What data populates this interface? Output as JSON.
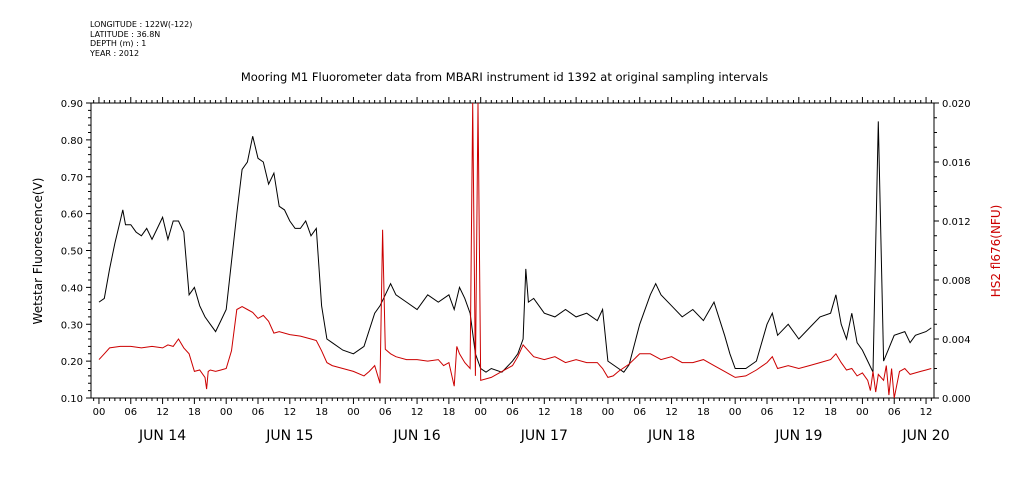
{
  "meta": {
    "longitude": "LONGITUDE : 122W(-122)",
    "latitude": "LATITUDE : 36.8N",
    "depth": "DEPTH (m) : 1",
    "year": "YEAR : 2012"
  },
  "chart_data": {
    "type": "line",
    "title": "Mooring M1 Fluorometer data from MBARI instrument id 1392 at original sampling intervals",
    "ylabel_left": "Wetstar Fluorescence(V)",
    "ylabel_right": "HS2 fl676(NFU)",
    "ylim_left": [
      0.1,
      0.9
    ],
    "ylim_right": [
      0.0,
      0.02
    ],
    "yticks_left": [
      "0.10",
      "0.20",
      "0.30",
      "0.40",
      "0.50",
      "0.60",
      "0.70",
      "0.80",
      "0.90"
    ],
    "yticks_right": [
      "0.000",
      "0.004",
      "0.008",
      "0.012",
      "0.016",
      "0.020"
    ],
    "xlim_hours": [
      -1.5,
      157.5
    ],
    "x_hour_labels": [
      "00",
      "06",
      "12",
      "18",
      "00",
      "06",
      "12",
      "18",
      "00",
      "06",
      "12",
      "18",
      "00",
      "06",
      "12",
      "18",
      "00",
      "06",
      "12",
      "18",
      "00",
      "06",
      "12",
      "18",
      "00",
      "06",
      "12"
    ],
    "day_labels": [
      "JUN 14",
      "JUN 15",
      "JUN 16",
      "JUN 17",
      "JUN 18",
      "JUN 19",
      "JUN 20"
    ],
    "grid": false,
    "colors": {
      "left_series": "#000000",
      "right_series": "#cc0000",
      "right_axis_label": "#cc0000"
    },
    "series": [
      {
        "name": "Wetstar Fluorescence(V)",
        "axis": "left",
        "points": [
          [
            0,
            0.36
          ],
          [
            1,
            0.37
          ],
          [
            2,
            0.45
          ],
          [
            3,
            0.52
          ],
          [
            4,
            0.58
          ],
          [
            4.5,
            0.61
          ],
          [
            5,
            0.57
          ],
          [
            6,
            0.57
          ],
          [
            7,
            0.55
          ],
          [
            8,
            0.54
          ],
          [
            9,
            0.56
          ],
          [
            10,
            0.53
          ],
          [
            11,
            0.56
          ],
          [
            12,
            0.59
          ],
          [
            13,
            0.53
          ],
          [
            14,
            0.58
          ],
          [
            15,
            0.58
          ],
          [
            16,
            0.55
          ],
          [
            17,
            0.38
          ],
          [
            18,
            0.4
          ],
          [
            19,
            0.35
          ],
          [
            20,
            0.32
          ],
          [
            21,
            0.3
          ],
          [
            22,
            0.28
          ],
          [
            23,
            0.31
          ],
          [
            24,
            0.34
          ],
          [
            25,
            0.47
          ],
          [
            26,
            0.6
          ],
          [
            27,
            0.72
          ],
          [
            28,
            0.74
          ],
          [
            29,
            0.81
          ],
          [
            30,
            0.75
          ],
          [
            31,
            0.74
          ],
          [
            32,
            0.68
          ],
          [
            33,
            0.71
          ],
          [
            34,
            0.62
          ],
          [
            35,
            0.61
          ],
          [
            36,
            0.58
          ],
          [
            37,
            0.56
          ],
          [
            38,
            0.56
          ],
          [
            39,
            0.58
          ],
          [
            40,
            0.54
          ],
          [
            41,
            0.56
          ],
          [
            42,
            0.35
          ],
          [
            43,
            0.26
          ],
          [
            44,
            0.25
          ],
          [
            46,
            0.23
          ],
          [
            48,
            0.22
          ],
          [
            50,
            0.24
          ],
          [
            52,
            0.33
          ],
          [
            53,
            0.35
          ],
          [
            54,
            0.38
          ],
          [
            55,
            0.41
          ],
          [
            56,
            0.38
          ],
          [
            58,
            0.36
          ],
          [
            60,
            0.34
          ],
          [
            62,
            0.38
          ],
          [
            64,
            0.36
          ],
          [
            66,
            0.38
          ],
          [
            67,
            0.34
          ],
          [
            68,
            0.4
          ],
          [
            69,
            0.37
          ],
          [
            70,
            0.33
          ],
          [
            71,
            0.22
          ],
          [
            72,
            0.18
          ],
          [
            73,
            0.17
          ],
          [
            74,
            0.18
          ],
          [
            76,
            0.17
          ],
          [
            78,
            0.2
          ],
          [
            79,
            0.22
          ],
          [
            80,
            0.26
          ],
          [
            80.5,
            0.45
          ],
          [
            81,
            0.36
          ],
          [
            82,
            0.37
          ],
          [
            84,
            0.33
          ],
          [
            86,
            0.32
          ],
          [
            88,
            0.34
          ],
          [
            90,
            0.32
          ],
          [
            92,
            0.33
          ],
          [
            94,
            0.31
          ],
          [
            95,
            0.34
          ],
          [
            96,
            0.2
          ],
          [
            98,
            0.18
          ],
          [
            99,
            0.17
          ],
          [
            100,
            0.19
          ],
          [
            102,
            0.3
          ],
          [
            104,
            0.38
          ],
          [
            105,
            0.41
          ],
          [
            106,
            0.38
          ],
          [
            108,
            0.35
          ],
          [
            110,
            0.32
          ],
          [
            112,
            0.34
          ],
          [
            114,
            0.31
          ],
          [
            116,
            0.36
          ],
          [
            118,
            0.27
          ],
          [
            119,
            0.22
          ],
          [
            120,
            0.18
          ],
          [
            122,
            0.18
          ],
          [
            124,
            0.2
          ],
          [
            126,
            0.3
          ],
          [
            127,
            0.33
          ],
          [
            128,
            0.27
          ],
          [
            130,
            0.3
          ],
          [
            132,
            0.26
          ],
          [
            134,
            0.29
          ],
          [
            136,
            0.32
          ],
          [
            138,
            0.33
          ],
          [
            139,
            0.38
          ],
          [
            140,
            0.3
          ],
          [
            141,
            0.26
          ],
          [
            142,
            0.33
          ],
          [
            143,
            0.25
          ],
          [
            144,
            0.23
          ],
          [
            145,
            0.2
          ],
          [
            146,
            0.17
          ],
          [
            147,
            0.85
          ],
          [
            148,
            0.2
          ],
          [
            150,
            0.27
          ],
          [
            152,
            0.28
          ],
          [
            153,
            0.25
          ],
          [
            154,
            0.27
          ],
          [
            156,
            0.28
          ],
          [
            157,
            0.29
          ]
        ]
      },
      {
        "name": "HS2 fl676(NFU)",
        "axis": "right",
        "points": [
          [
            0,
            0.0026
          ],
          [
            1,
            0.003
          ],
          [
            2,
            0.0034
          ],
          [
            4,
            0.0035
          ],
          [
            6,
            0.0035
          ],
          [
            8,
            0.0034
          ],
          [
            10,
            0.0035
          ],
          [
            12,
            0.0034
          ],
          [
            13,
            0.0036
          ],
          [
            14,
            0.0035
          ],
          [
            15,
            0.004
          ],
          [
            16,
            0.0034
          ],
          [
            17,
            0.003
          ],
          [
            18,
            0.0018
          ],
          [
            19,
            0.0019
          ],
          [
            20,
            0.0014
          ],
          [
            20.3,
            0.0006
          ],
          [
            20.6,
            0.0018
          ],
          [
            21,
            0.0019
          ],
          [
            22,
            0.0018
          ],
          [
            23,
            0.0019
          ],
          [
            24,
            0.002
          ],
          [
            25,
            0.0032
          ],
          [
            26,
            0.006
          ],
          [
            27,
            0.0062
          ],
          [
            28,
            0.006
          ],
          [
            29,
            0.0058
          ],
          [
            30,
            0.0054
          ],
          [
            31,
            0.0056
          ],
          [
            32,
            0.0052
          ],
          [
            33,
            0.0044
          ],
          [
            34,
            0.0045
          ],
          [
            36,
            0.0043
          ],
          [
            38,
            0.0042
          ],
          [
            40,
            0.004
          ],
          [
            41,
            0.0039
          ],
          [
            42,
            0.0032
          ],
          [
            43,
            0.0024
          ],
          [
            44,
            0.0022
          ],
          [
            46,
            0.002
          ],
          [
            48,
            0.0018
          ],
          [
            50,
            0.0015
          ],
          [
            51,
            0.0018
          ],
          [
            52,
            0.0022
          ],
          [
            53,
            0.001
          ],
          [
            53.5,
            0.0114
          ],
          [
            54,
            0.0033
          ],
          [
            55,
            0.003
          ],
          [
            56,
            0.0028
          ],
          [
            58,
            0.0026
          ],
          [
            60,
            0.0026
          ],
          [
            62,
            0.0025
          ],
          [
            64,
            0.0026
          ],
          [
            65,
            0.0022
          ],
          [
            66,
            0.0024
          ],
          [
            67,
            0.0008
          ],
          [
            67.5,
            0.0035
          ],
          [
            68,
            0.003
          ],
          [
            69,
            0.0024
          ],
          [
            70,
            0.002
          ],
          [
            70.5,
            0.02
          ],
          [
            71,
            0.0015
          ],
          [
            71.5,
            0.02
          ],
          [
            72,
            0.0012
          ],
          [
            74,
            0.0014
          ],
          [
            76,
            0.0018
          ],
          [
            78,
            0.0022
          ],
          [
            79,
            0.0028
          ],
          [
            80,
            0.0036
          ],
          [
            81,
            0.0032
          ],
          [
            82,
            0.0028
          ],
          [
            84,
            0.0026
          ],
          [
            86,
            0.0028
          ],
          [
            88,
            0.0024
          ],
          [
            90,
            0.0026
          ],
          [
            92,
            0.0024
          ],
          [
            94,
            0.0024
          ],
          [
            95,
            0.002
          ],
          [
            96,
            0.0014
          ],
          [
            97,
            0.0015
          ],
          [
            98,
            0.0018
          ],
          [
            100,
            0.0023
          ],
          [
            102,
            0.003
          ],
          [
            104,
            0.003
          ],
          [
            105,
            0.0028
          ],
          [
            106,
            0.0026
          ],
          [
            108,
            0.0028
          ],
          [
            110,
            0.0024
          ],
          [
            112,
            0.0024
          ],
          [
            114,
            0.0026
          ],
          [
            116,
            0.0022
          ],
          [
            118,
            0.0018
          ],
          [
            119,
            0.0016
          ],
          [
            120,
            0.0014
          ],
          [
            122,
            0.0015
          ],
          [
            124,
            0.0019
          ],
          [
            126,
            0.0024
          ],
          [
            127,
            0.0028
          ],
          [
            128,
            0.002
          ],
          [
            130,
            0.0022
          ],
          [
            132,
            0.002
          ],
          [
            134,
            0.0022
          ],
          [
            136,
            0.0024
          ],
          [
            138,
            0.0026
          ],
          [
            139,
            0.003
          ],
          [
            140,
            0.0024
          ],
          [
            141,
            0.0019
          ],
          [
            142,
            0.002
          ],
          [
            143,
            0.0015
          ],
          [
            144,
            0.0017
          ],
          [
            145,
            0.0012
          ],
          [
            145.5,
            0.0005
          ],
          [
            146,
            0.0018
          ],
          [
            146.5,
            0.0004
          ],
          [
            147,
            0.0016
          ],
          [
            148,
            0.0012
          ],
          [
            148.5,
            0.0022
          ],
          [
            149,
            0.0002
          ],
          [
            149.5,
            0.002
          ],
          [
            150,
            0.0
          ],
          [
            151,
            0.0018
          ],
          [
            152,
            0.002
          ],
          [
            153,
            0.0016
          ],
          [
            154,
            0.0017
          ],
          [
            155,
            0.0018
          ],
          [
            156,
            0.0019
          ],
          [
            157,
            0.002
          ]
        ]
      }
    ]
  }
}
